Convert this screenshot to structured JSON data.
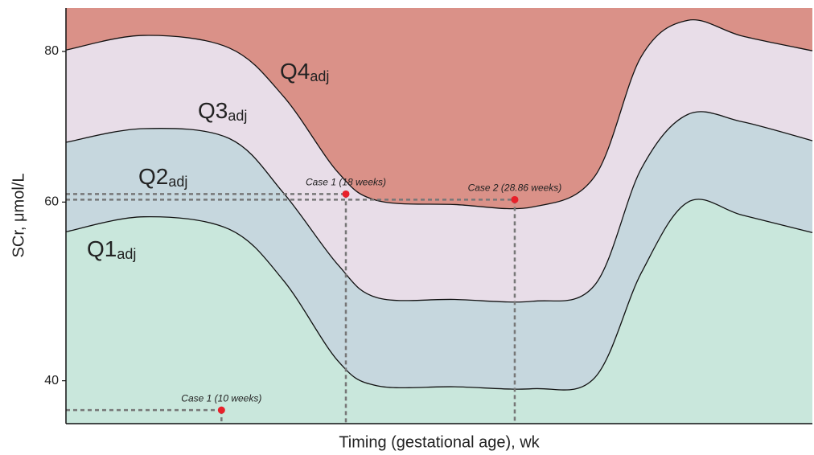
{
  "chart_data": {
    "type": "area_bands",
    "x_label": "Timing (gestational age), wk",
    "y_label": "SCr, μmol/L",
    "xlim": [
      0,
      48
    ],
    "ylim": [
      35.8,
      86.3
    ],
    "yscale": "sqrt",
    "yticks": [
      40,
      60,
      80
    ],
    "x": [
      0,
      5,
      10.5,
      14,
      17.5,
      20,
      25,
      30,
      34,
      37,
      40,
      43.5,
      48
    ],
    "bands": [
      {
        "name": "Q1",
        "sub": "adj",
        "color": "#c9e7dc",
        "upper": [
          56.4,
          58.2,
          56.7,
          50.7,
          42.0,
          39.5,
          39.4,
          39.2,
          40.3,
          51.6,
          60.0,
          58.4,
          56.3
        ]
      },
      {
        "name": "Q2",
        "sub": "adj",
        "color": "#c6d7de",
        "upper": [
          67.6,
          69.4,
          68.1,
          61.1,
          52.5,
          48.8,
          48.6,
          48.4,
          50.2,
          64.2,
          71.3,
          70.3,
          67.8
        ]
      },
      {
        "name": "Q3",
        "sub": "adj",
        "color": "#e8dde8",
        "upper": [
          80.2,
          82.3,
          80.5,
          73.7,
          63.7,
          60.2,
          59.7,
          59.4,
          63.2,
          79.3,
          84.5,
          82.2,
          80.1
        ]
      },
      {
        "name": "Q4",
        "sub": "adj",
        "color": "#da9188"
      }
    ],
    "points": [
      {
        "label": "Case 1 (18 weeks)",
        "x": 18,
        "y": 61.0
      },
      {
        "label": "Case 2 (28.86 weeks)",
        "x": 28.86,
        "y": 60.3
      },
      {
        "label": "Case 1 (10 weeks)",
        "x": 10,
        "y": 37.1
      }
    ],
    "point_color": "#e8202a"
  }
}
